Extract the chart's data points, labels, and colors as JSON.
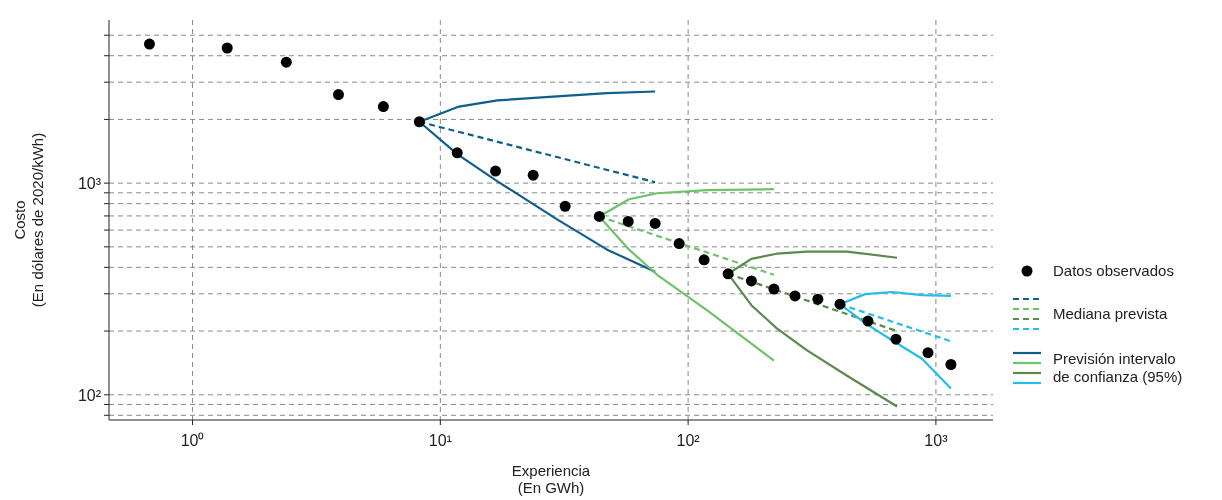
{
  "chart_data": {
    "type": "line",
    "xlabel": "Experiencia\n(En GWh)",
    "ylabel": "Costo\n(En dólares de 2020/kWh)",
    "log": "xy",
    "grid": true,
    "legend": "right",
    "xlim": [
      0.46,
      1700
    ],
    "ylim": [
      76,
      5900
    ],
    "xticks": [
      {
        "value": 1,
        "label": "10⁰"
      },
      {
        "value": 10,
        "label": "10¹"
      },
      {
        "value": 100,
        "label": "10²"
      },
      {
        "value": 1000,
        "label": "10³"
      }
    ],
    "yticks": [
      {
        "value": 80,
        "label": null
      },
      {
        "value": 90,
        "label": null
      },
      {
        "value": 100,
        "label": "10²"
      },
      {
        "value": 200,
        "label": null
      },
      {
        "value": 300,
        "label": null
      },
      {
        "value": 400,
        "label": null
      },
      {
        "value": 500,
        "label": null
      },
      {
        "value": 600,
        "label": null
      },
      {
        "value": 700,
        "label": null
      },
      {
        "value": 800,
        "label": null
      },
      {
        "value": 900,
        "label": null
      },
      {
        "value": 1000,
        "label": "10³"
      },
      {
        "value": 2000,
        "label": null
      },
      {
        "value": 3000,
        "label": null
      },
      {
        "value": 4000,
        "label": null
      },
      {
        "value": 5000,
        "label": null
      }
    ],
    "series": [
      {
        "name": "Datos observados",
        "type": "scatter",
        "marker": "circle",
        "color": "#000000",
        "x": [
          0.67,
          1.38,
          2.39,
          3.88,
          5.89,
          8.23,
          11.7,
          16.7,
          23.7,
          31.9,
          43.8,
          57.3,
          73.6,
          92,
          116,
          145,
          180,
          222,
          270,
          334,
          410,
          532,
          690,
          929,
          1150
        ],
        "values": [
          4540,
          4350,
          3730,
          2620,
          2300,
          1950,
          1390,
          1140,
          1090,
          777,
          696,
          659,
          645,
          518,
          434,
          373,
          345,
          316,
          293,
          283,
          268,
          223,
          183,
          158,
          139
        ]
      },
      {
        "line_style": "dashed",
        "color": "#0f5e8c",
        "x": [
          8.23,
          73.6
        ],
        "values": [
          1950,
          1010
        ]
      },
      {
        "name": "Mediana prevista",
        "line_style": "dashed",
        "color": "#6cc36a",
        "x": [
          43.8,
          222
        ],
        "values": [
          696,
          369
        ]
      },
      {
        "line_style": "dashed",
        "color": "#5b8a4c",
        "x": [
          145,
          697
        ],
        "values": [
          373,
          200
        ]
      },
      {
        "line_style": "dashed",
        "color": "#23bde8",
        "x": [
          410,
          1150
        ],
        "values": [
          268,
          179
        ]
      },
      {
        "name": "Previsión intervalo de confianza (95%)",
        "line_style": "solid",
        "color": "#0f5e8c",
        "x": [
          8.23,
          11.9,
          17,
          29.6,
          47.1,
          73.6
        ],
        "values": [
          1950,
          2300,
          2460,
          2570,
          2660,
          2710
        ]
      },
      {
        "line_style": "solid",
        "color": "#0f5e8c",
        "x": [
          8.23,
          11.7,
          17,
          29.6,
          47.1,
          73.6
        ],
        "values": [
          1950,
          1370,
          1020,
          674,
          485,
          381
        ]
      },
      {
        "line_style": "solid",
        "color": "#6cc36a",
        "x": [
          43.8,
          57.8,
          75,
          119,
          222
        ],
        "values": [
          696,
          839,
          896,
          926,
          936
        ]
      },
      {
        "line_style": "solid",
        "color": "#6cc36a",
        "x": [
          43.8,
          57.8,
          75,
          119,
          222
        ],
        "values": [
          696,
          485,
          369,
          251,
          145
        ]
      },
      {
        "line_style": "solid",
        "color": "#5b8a4c",
        "x": [
          145,
          180,
          228,
          302,
          438,
          697
        ],
        "values": [
          373,
          439,
          464,
          475,
          475,
          444
        ]
      },
      {
        "line_style": "solid",
        "color": "#5b8a4c",
        "x": [
          145,
          180,
          228,
          302,
          438,
          697
        ],
        "values": [
          373,
          265,
          206,
          162,
          123,
          88
        ]
      },
      {
        "line_style": "solid",
        "color": "#23bde8",
        "x": [
          410,
          518,
          665,
          879,
          1150
        ],
        "values": [
          268,
          299,
          306,
          296,
          293
        ]
      },
      {
        "line_style": "solid",
        "color": "#23bde8",
        "x": [
          410,
          518,
          665,
          879,
          1150
        ],
        "values": [
          268,
          218,
          181,
          148,
          107
        ]
      }
    ]
  }
}
